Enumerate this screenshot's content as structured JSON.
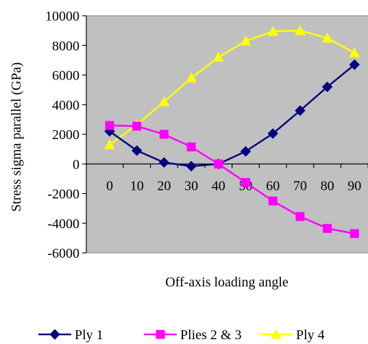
{
  "chart_data": {
    "type": "line",
    "title": "",
    "xlabel": "Off-axis loading angle",
    "ylabel": "Stress sigma parallel (GPa)",
    "categories": [
      "0",
      "10",
      "20",
      "30",
      "40",
      "50",
      "60",
      "70",
      "80",
      "90"
    ],
    "x": [
      0,
      10,
      20,
      30,
      40,
      50,
      60,
      70,
      80,
      90
    ],
    "ylim": [
      -6000,
      10000
    ],
    "yticks": [
      10000,
      8000,
      6000,
      4000,
      2000,
      0,
      -2000,
      -4000,
      -6000
    ],
    "ytick_labels": [
      "10000",
      "8000",
      "6000",
      "4000",
      "2000",
      "0",
      "-2000",
      "-4000",
      "-6000"
    ],
    "grid": false,
    "plot_background": "#c0c0c0",
    "legend_position": "bottom",
    "series": [
      {
        "name": "Ply 1",
        "color": "#000080",
        "marker": "diamond",
        "values": [
          2200,
          900,
          100,
          -150,
          0,
          850,
          2050,
          3600,
          5200,
          6700
        ]
      },
      {
        "name": "Plies 2 & 3",
        "color": "#ff00ff",
        "marker": "square",
        "values": [
          2600,
          2550,
          2000,
          1150,
          0,
          -1250,
          -2500,
          -3550,
          -4350,
          -4700
        ]
      },
      {
        "name": "Ply 4",
        "color": "#ffff00",
        "marker": "triangle",
        "values": [
          1300,
          2650,
          4200,
          5800,
          7200,
          8300,
          8950,
          9000,
          8500,
          7500
        ]
      }
    ]
  }
}
